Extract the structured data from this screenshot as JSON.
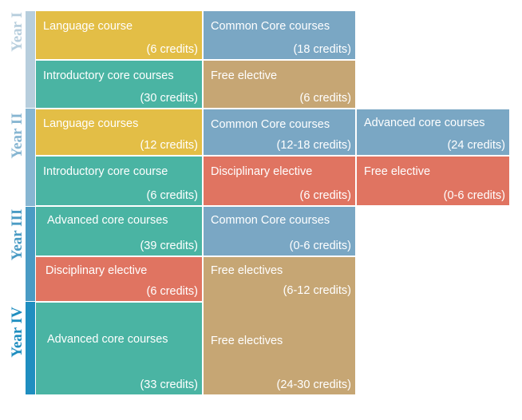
{
  "colors": {
    "language": "#e3be46",
    "introductory": "#4ab4a3",
    "common_core": "#7aa7c4",
    "free": "#c6a674",
    "disciplinary": "#e07461",
    "year_bars": [
      "#b7cedd",
      "#87b6d2",
      "#4a9bc4",
      "#1f8ec0"
    ]
  },
  "years": [
    {
      "label": "Year I"
    },
    {
      "label": "Year II"
    },
    {
      "label": "Year III"
    },
    {
      "label": "Year IV"
    }
  ],
  "cells": {
    "y1_language": {
      "title": "Language course",
      "credits": "(6 credits)"
    },
    "y1_common": {
      "title": "Common Core courses",
      "credits": "(18 credits)"
    },
    "y1_intro": {
      "title": "Introductory core courses",
      "credits": "(30 credits)"
    },
    "y1_free": {
      "title": "Free elective",
      "credits": "(6 credits)"
    },
    "y2_language": {
      "title": "Language courses",
      "credits": "(12 credits)"
    },
    "y2_common": {
      "title": "Common Core courses",
      "credits": "(12-18 credits)"
    },
    "y2_advanced": {
      "title": "Advanced core courses",
      "credits": "(24 credits)"
    },
    "y2_intro": {
      "title": "Introductory core course",
      "credits": "(6 credits)"
    },
    "y2_disciplinary": {
      "title": "Disciplinary elective",
      "credits": "(6 credits)"
    },
    "y2_free": {
      "title": "Free elective",
      "credits": "(0-6 credits)"
    },
    "y3_advanced": {
      "title": "Advanced core courses",
      "credits": "(39 credits)"
    },
    "y3_common": {
      "title": "Common Core courses",
      "credits": "(0-6 credits)"
    },
    "y3_disciplinary": {
      "title": "Disciplinary elective",
      "credits": "(6 credits)"
    },
    "y3_free": {
      "title": "Free electives",
      "credits": "(6-12 credits)"
    },
    "y4_advanced": {
      "title": "Advanced core courses",
      "credits": "(33 credits)"
    },
    "y4_free": {
      "title": "Free electives",
      "credits": "(24-30 credits)"
    }
  }
}
